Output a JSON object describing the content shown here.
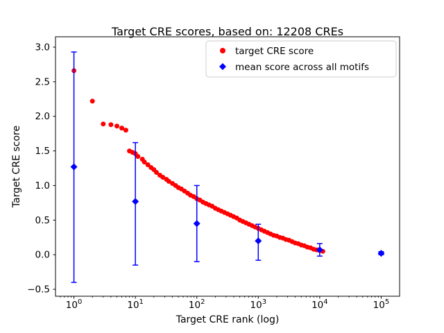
{
  "chart_data": {
    "type": "scatter",
    "title": "Target CRE scores, based on: 12208 CREs",
    "xlabel": "Target CRE rank (log)",
    "ylabel": "Target CRE score",
    "axes": {
      "x_scale": "log",
      "xlim_log10": [
        -0.3,
        5.3
      ],
      "ylim": [
        -0.6,
        3.15
      ],
      "x_tick_exponents": [
        0,
        1,
        2,
        3,
        4,
        5
      ],
      "y_ticks": [
        -0.5,
        0.0,
        0.5,
        1.0,
        1.5,
        2.0,
        2.5,
        3.0
      ],
      "y_tick_labels": [
        "−0.5",
        "0.0",
        "0.5",
        "1.0",
        "1.5",
        "2.0",
        "2.5",
        "3.0"
      ],
      "grid": false
    },
    "series": [
      {
        "name": "target CRE score",
        "marker": "circle",
        "color": "#ff0000",
        "points": [
          [
            1,
            2.66
          ],
          [
            2,
            2.22
          ],
          [
            3,
            1.89
          ],
          [
            4,
            1.88
          ],
          [
            5,
            1.86
          ],
          [
            6,
            1.83
          ],
          [
            7,
            1.8
          ],
          [
            8,
            1.5
          ],
          [
            9,
            1.48
          ],
          [
            10,
            1.46
          ],
          [
            11,
            1.42
          ],
          [
            13,
            1.38
          ],
          [
            14,
            1.34
          ],
          [
            16,
            1.3
          ],
          [
            18,
            1.26
          ],
          [
            20,
            1.23
          ],
          [
            22,
            1.19
          ],
          [
            25,
            1.15
          ],
          [
            28,
            1.12
          ],
          [
            32,
            1.09
          ],
          [
            35,
            1.06
          ],
          [
            40,
            1.03
          ],
          [
            45,
            1.0
          ],
          [
            50,
            0.97
          ],
          [
            56,
            0.95
          ],
          [
            63,
            0.92
          ],
          [
            71,
            0.89
          ],
          [
            79,
            0.86
          ],
          [
            89,
            0.84
          ],
          [
            100,
            0.81
          ],
          [
            112,
            0.79
          ],
          [
            126,
            0.76
          ],
          [
            141,
            0.74
          ],
          [
            158,
            0.72
          ],
          [
            178,
            0.7
          ],
          [
            200,
            0.67
          ],
          [
            224,
            0.65
          ],
          [
            251,
            0.63
          ],
          [
            282,
            0.61
          ],
          [
            316,
            0.59
          ],
          [
            355,
            0.57
          ],
          [
            398,
            0.55
          ],
          [
            447,
            0.53
          ],
          [
            501,
            0.5
          ],
          [
            562,
            0.48
          ],
          [
            631,
            0.46
          ],
          [
            708,
            0.44
          ],
          [
            794,
            0.42
          ],
          [
            891,
            0.4
          ],
          [
            1000,
            0.38
          ],
          [
            1122,
            0.36
          ],
          [
            1259,
            0.34
          ],
          [
            1413,
            0.32
          ],
          [
            1585,
            0.3
          ],
          [
            1778,
            0.28
          ],
          [
            1995,
            0.27
          ],
          [
            2239,
            0.25
          ],
          [
            2512,
            0.24
          ],
          [
            2818,
            0.22
          ],
          [
            3162,
            0.21
          ],
          [
            3548,
            0.19
          ],
          [
            3981,
            0.17
          ],
          [
            4467,
            0.16
          ],
          [
            5012,
            0.14
          ],
          [
            5623,
            0.13
          ],
          [
            6310,
            0.11
          ],
          [
            7079,
            0.1
          ],
          [
            7943,
            0.08
          ],
          [
            8913,
            0.07
          ],
          [
            10000,
            0.06
          ],
          [
            11220,
            0.05
          ]
        ]
      },
      {
        "name": "mean score across all motifs",
        "marker": "diamond",
        "color": "#0000ff",
        "x": [
          1,
          10,
          100,
          1000,
          10000,
          100000
        ],
        "y": [
          1.27,
          0.77,
          0.45,
          0.2,
          0.07,
          0.02
        ],
        "y_low": [
          -0.4,
          -0.15,
          -0.1,
          -0.08,
          -0.02,
          0.0
        ],
        "y_high": [
          2.93,
          1.62,
          1.0,
          0.44,
          0.16,
          0.045
        ]
      }
    ],
    "legend": {
      "position": "upper right",
      "entries": [
        "target CRE score",
        "mean score across all motifs"
      ]
    }
  }
}
